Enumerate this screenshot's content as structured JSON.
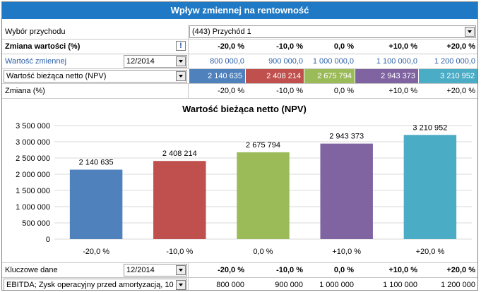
{
  "title": "Wpływ zmiennej na rentowność",
  "income_select": {
    "label": "Wybór przychodu",
    "value": "(443) Przychód 1"
  },
  "change_row": {
    "label": "Zmiana wartości (%)",
    "info_icon": "exclamation-icon",
    "values": [
      "-20,0 %",
      "-10,0 %",
      "0,0 %",
      "+10,0 %",
      "+20,0 %"
    ]
  },
  "variable_row": {
    "label": "Wartość zmiennej",
    "period": "12/2014",
    "values": [
      "800 000,0",
      "900 000,0",
      "1 000 000,0",
      "1 100 000,0",
      "1 200 000,0"
    ]
  },
  "npv_row": {
    "label": "Wartość bieżąca netto (NPV)",
    "values": [
      "2 140 635",
      "2 408 214",
      "2 675 794",
      "2 943 373",
      "3 210 952"
    ]
  },
  "pct_row": {
    "label": "Zmiana (%)",
    "values": [
      "-20,0 %",
      "-10,0 %",
      "0,0 %",
      "+10,0 %",
      "+20,0 %"
    ]
  },
  "colors": [
    "#4f81bd",
    "#c0504d",
    "#9bbb59",
    "#8064a2",
    "#4bacc6"
  ],
  "chart_data": {
    "type": "bar",
    "title": "Wartość bieżąca netto (NPV)",
    "categories": [
      "-20,0 %",
      "-10,0 %",
      "0,0 %",
      "+10,0 %",
      "+20,0 %"
    ],
    "values": [
      2140635,
      2408214,
      2675794,
      2943373,
      3210952
    ],
    "data_labels": [
      "2 140 635",
      "2 408 214",
      "2 675 794",
      "2 943 373",
      "3 210 952"
    ],
    "ylim": [
      0,
      3500000
    ],
    "yticks": [
      0,
      500000,
      1000000,
      1500000,
      2000000,
      2500000,
      3000000,
      3500000
    ],
    "ytick_labels": [
      "0",
      "500 000",
      "1 000 000",
      "1 500 000",
      "2 000 000",
      "2 500 000",
      "3 000 000",
      "3 500 000"
    ],
    "xlabel": "",
    "ylabel": "",
    "grid": true
  },
  "key_row": {
    "label": "Kluczowe dane",
    "period": "12/2014",
    "values": [
      "-20,0 %",
      "-10,0 %",
      "0,0 %",
      "+10,0 %",
      "+20,0 %"
    ]
  },
  "ebitda_row": {
    "label": "EBITDA; Zysk operacyjny przed amortyzacją, 10",
    "values": [
      "800 000",
      "900 000",
      "1 000 000",
      "1 100 000",
      "1 200 000"
    ]
  }
}
